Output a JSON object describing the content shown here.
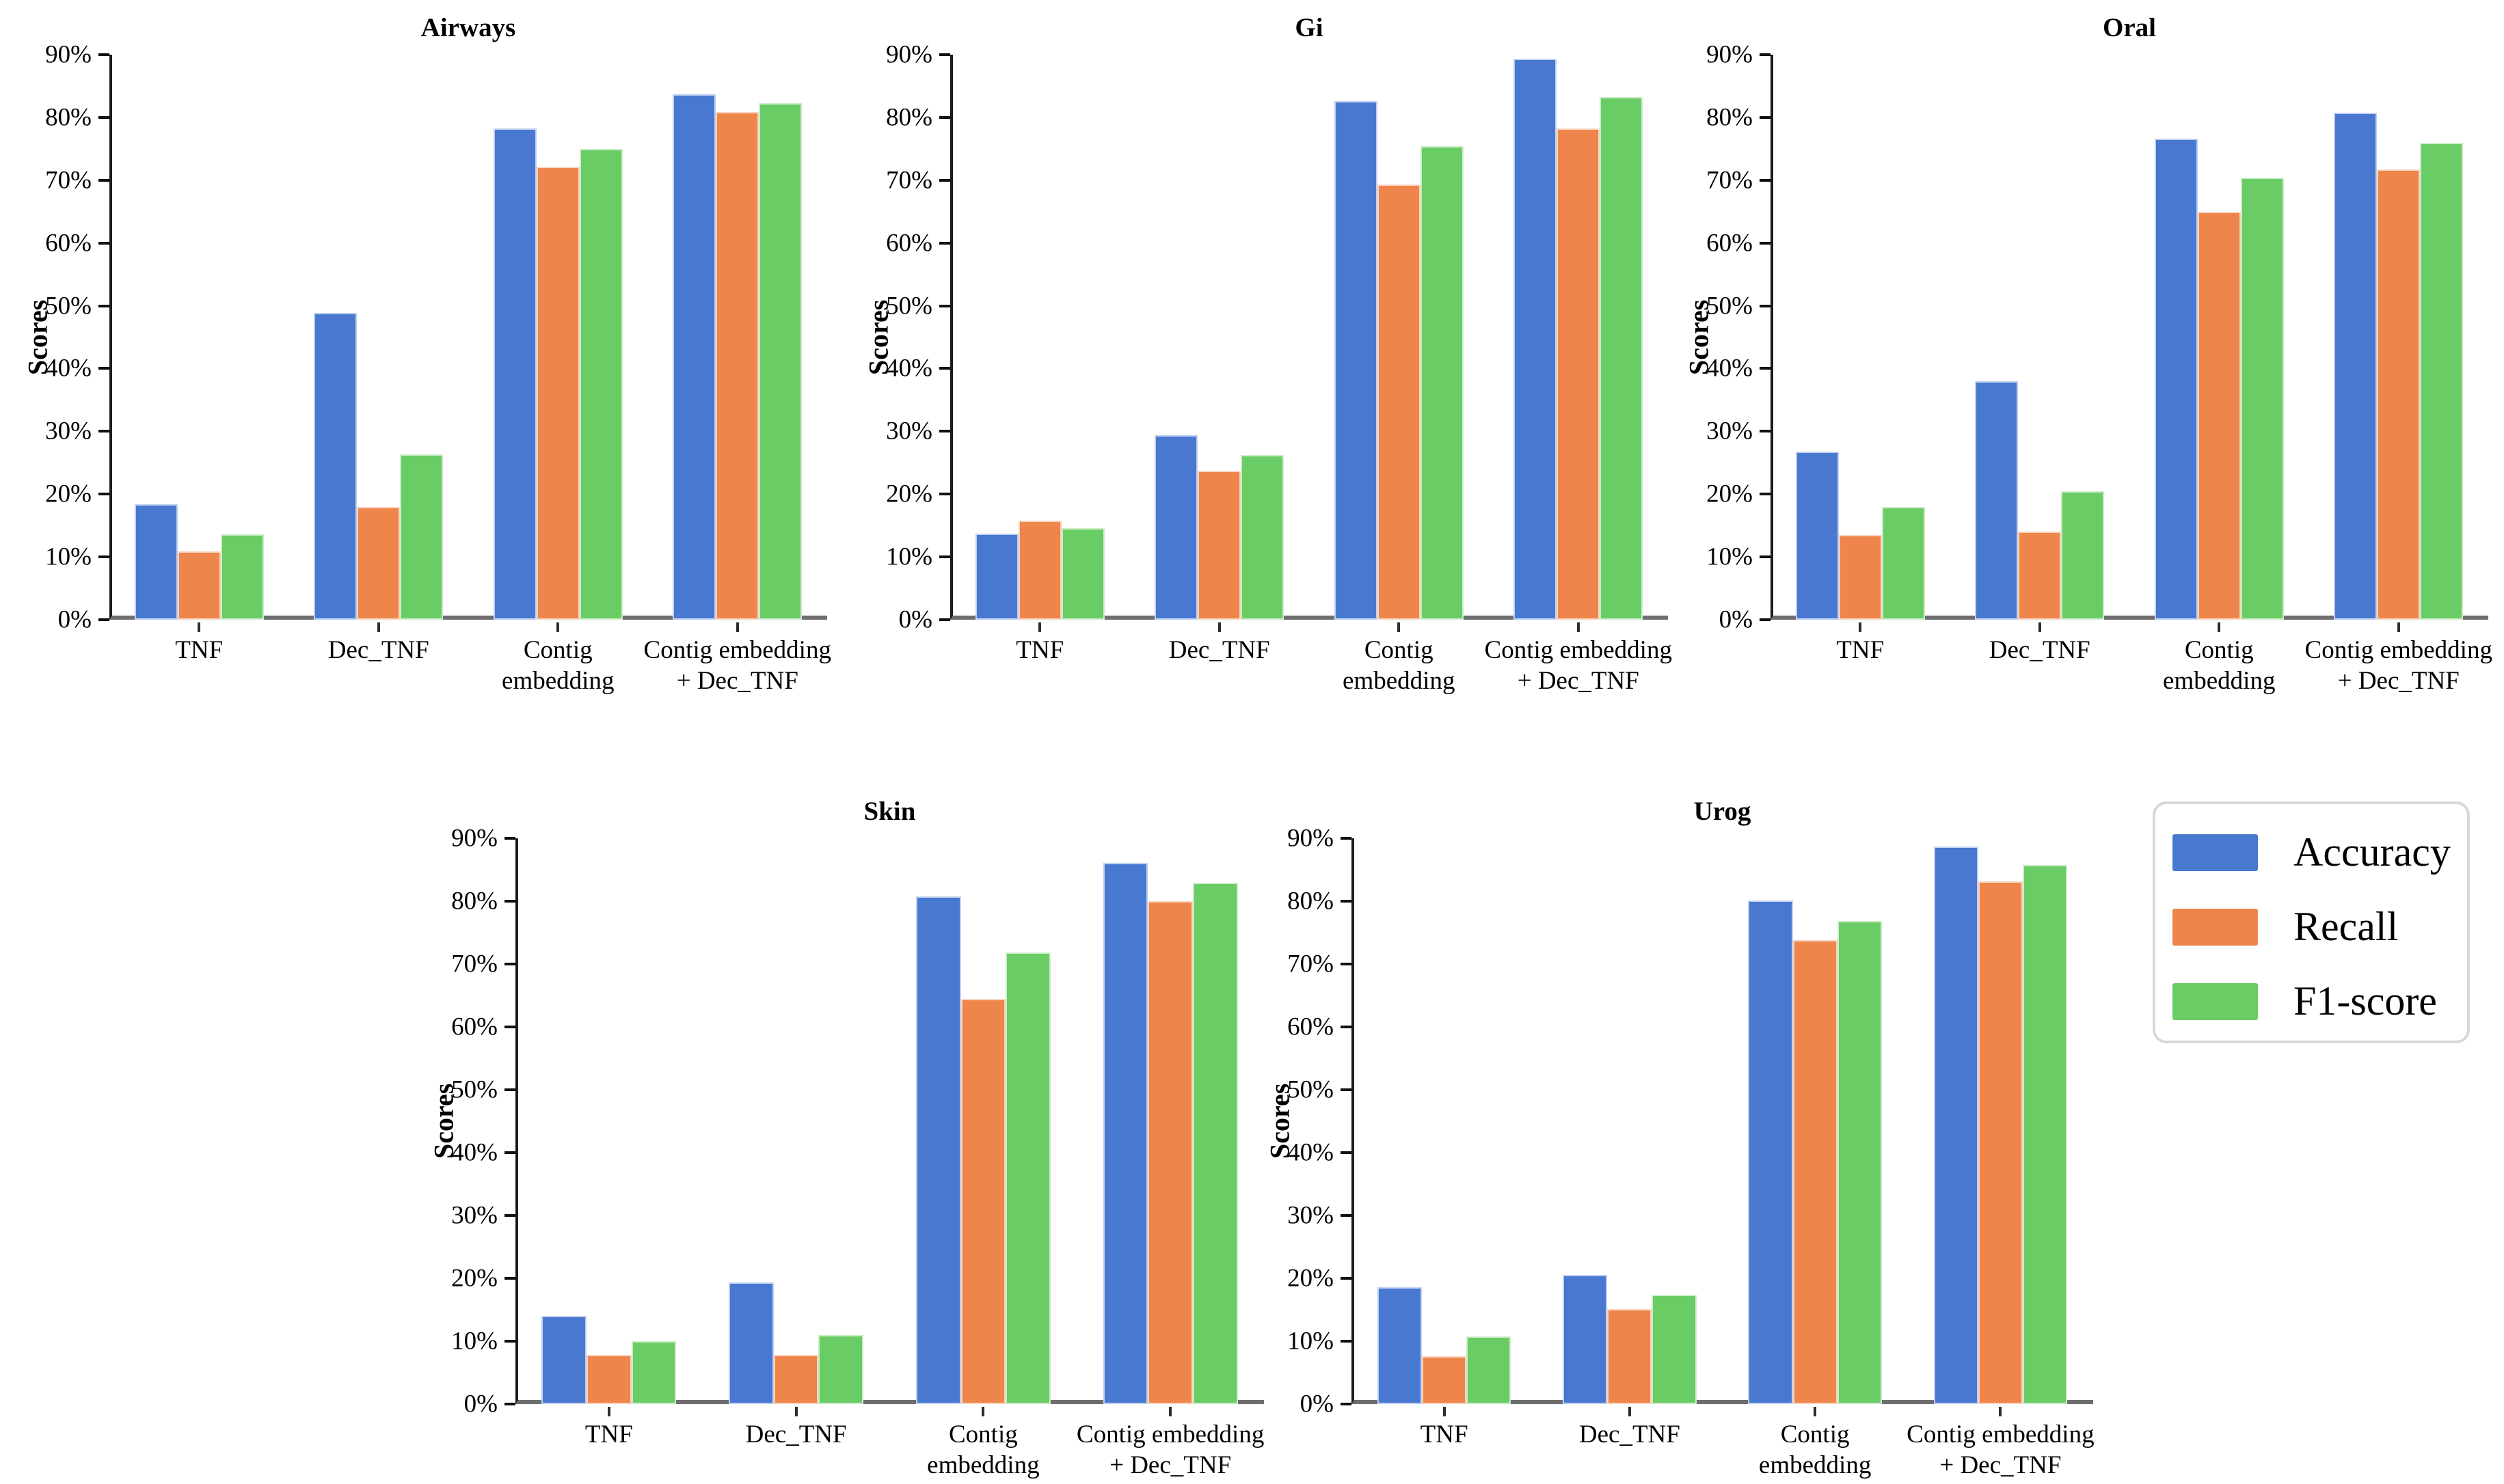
{
  "figure": {
    "background": "#ffffff",
    "description": "Classification scores (Accuracy, Recall, F1-score) for five body sites across four feature types"
  },
  "palette": {
    "accuracy": "#4878D0",
    "recall": "#EE854A",
    "f1_score": "#6ACC64",
    "y_axis_line": "#1c1c1c",
    "x_axis_line": "#6e6e6e",
    "legend_border": "#d8d8d8"
  },
  "axis": {
    "ylabel": "Scores",
    "ymax": 90,
    "ytick_step": 10,
    "yticks": [
      "0%",
      "10%",
      "20%",
      "30%",
      "40%",
      "50%",
      "60%",
      "70%",
      "80%",
      "90%"
    ]
  },
  "legend": {
    "position": "bottom-right",
    "items": [
      {
        "label": "Accuracy",
        "color": "#4878D0"
      },
      {
        "label": "Recall",
        "color": "#EE854A"
      },
      {
        "label": "F1-score",
        "color": "#6ACC64"
      }
    ]
  },
  "chart_data": [
    {
      "type": "bar",
      "title": "Airways",
      "xlabel": "",
      "ylabel": "Scores",
      "ylim": [
        0,
        90
      ],
      "grid": false,
      "categories": [
        "TNF",
        "Dec_TNF",
        "Contig embedding",
        "Contig embedding + Dec_TNF"
      ],
      "categories_lines": [
        [
          "TNF"
        ],
        [
          "Dec_TNF"
        ],
        [
          "Contig",
          "embedding"
        ],
        [
          "Contig embedding",
          "+ Dec_TNF"
        ]
      ],
      "series": [
        {
          "name": "Accuracy",
          "values": [
            18.4,
            48.9,
            78.2,
            83.7
          ]
        },
        {
          "name": "Recall",
          "values": [
            10.9,
            18.0,
            72.1,
            80.9
          ]
        },
        {
          "name": "F1-score",
          "values": [
            13.6,
            26.3,
            75.0,
            82.3
          ]
        }
      ]
    },
    {
      "type": "bar",
      "title": "Gi",
      "xlabel": "",
      "ylabel": "Scores",
      "ylim": [
        0,
        90
      ],
      "grid": false,
      "categories": [
        "TNF",
        "Dec_TNF",
        "Contig embedding",
        "Contig embedding + Dec_TNF"
      ],
      "categories_lines": [
        [
          "TNF"
        ],
        [
          "Dec_TNF"
        ],
        [
          "Contig",
          "embedding"
        ],
        [
          "Contig embedding",
          "+ Dec_TNF"
        ]
      ],
      "series": [
        {
          "name": "Accuracy",
          "values": [
            13.7,
            29.4,
            82.6,
            89.3
          ]
        },
        {
          "name": "Recall",
          "values": [
            15.8,
            23.7,
            69.3,
            78.2
          ]
        },
        {
          "name": "F1-score",
          "values": [
            14.6,
            26.2,
            75.4,
            83.3
          ]
        }
      ]
    },
    {
      "type": "bar",
      "title": "Oral",
      "xlabel": "",
      "ylabel": "Scores",
      "ylim": [
        0,
        90
      ],
      "grid": false,
      "categories": [
        "TNF",
        "Dec_TNF",
        "Contig embedding",
        "Contig embedding + Dec_TNF"
      ],
      "categories_lines": [
        [
          "TNF"
        ],
        [
          "Dec_TNF"
        ],
        [
          "Contig",
          "embedding"
        ],
        [
          "Contig embedding",
          "+ Dec_TNF"
        ]
      ],
      "series": [
        {
          "name": "Accuracy",
          "values": [
            26.8,
            38.0,
            76.6,
            80.7
          ]
        },
        {
          "name": "Recall",
          "values": [
            13.5,
            14.0,
            65.0,
            71.7
          ]
        },
        {
          "name": "F1-score",
          "values": [
            18.0,
            20.5,
            70.4,
            76.0
          ]
        }
      ]
    },
    {
      "type": "bar",
      "title": "Skin",
      "xlabel": "",
      "ylabel": "Scores",
      "ylim": [
        0,
        90
      ],
      "grid": false,
      "categories": [
        "TNF",
        "Dec_TNF",
        "Contig embedding",
        "Contig embedding + Dec_TNF"
      ],
      "categories_lines": [
        [
          "TNF"
        ],
        [
          "Dec_TNF"
        ],
        [
          "Contig",
          "embedding"
        ],
        [
          "Contig embedding",
          "+ Dec_TNF"
        ]
      ],
      "series": [
        {
          "name": "Accuracy",
          "values": [
            14.0,
            19.4,
            80.8,
            86.1
          ]
        },
        {
          "name": "Recall",
          "values": [
            7.8,
            7.8,
            64.5,
            80.0
          ]
        },
        {
          "name": "F1-score",
          "values": [
            10.0,
            11.0,
            71.8,
            82.9
          ]
        }
      ]
    },
    {
      "type": "bar",
      "title": "Urog",
      "xlabel": "",
      "ylabel": "Scores",
      "ylim": [
        0,
        90
      ],
      "grid": false,
      "categories": [
        "TNF",
        "Dec_TNF",
        "Contig embedding",
        "Contig embedding + Dec_TNF"
      ],
      "categories_lines": [
        [
          "TNF"
        ],
        [
          "Dec_TNF"
        ],
        [
          "Contig",
          "embedding"
        ],
        [
          "Contig embedding",
          "+ Dec_TNF"
        ]
      ],
      "series": [
        {
          "name": "Accuracy",
          "values": [
            18.6,
            20.5,
            80.1,
            88.7
          ]
        },
        {
          "name": "Recall",
          "values": [
            7.6,
            15.1,
            73.8,
            83.2
          ]
        },
        {
          "name": "F1-score",
          "values": [
            10.8,
            17.4,
            76.9,
            85.8
          ]
        }
      ]
    }
  ]
}
